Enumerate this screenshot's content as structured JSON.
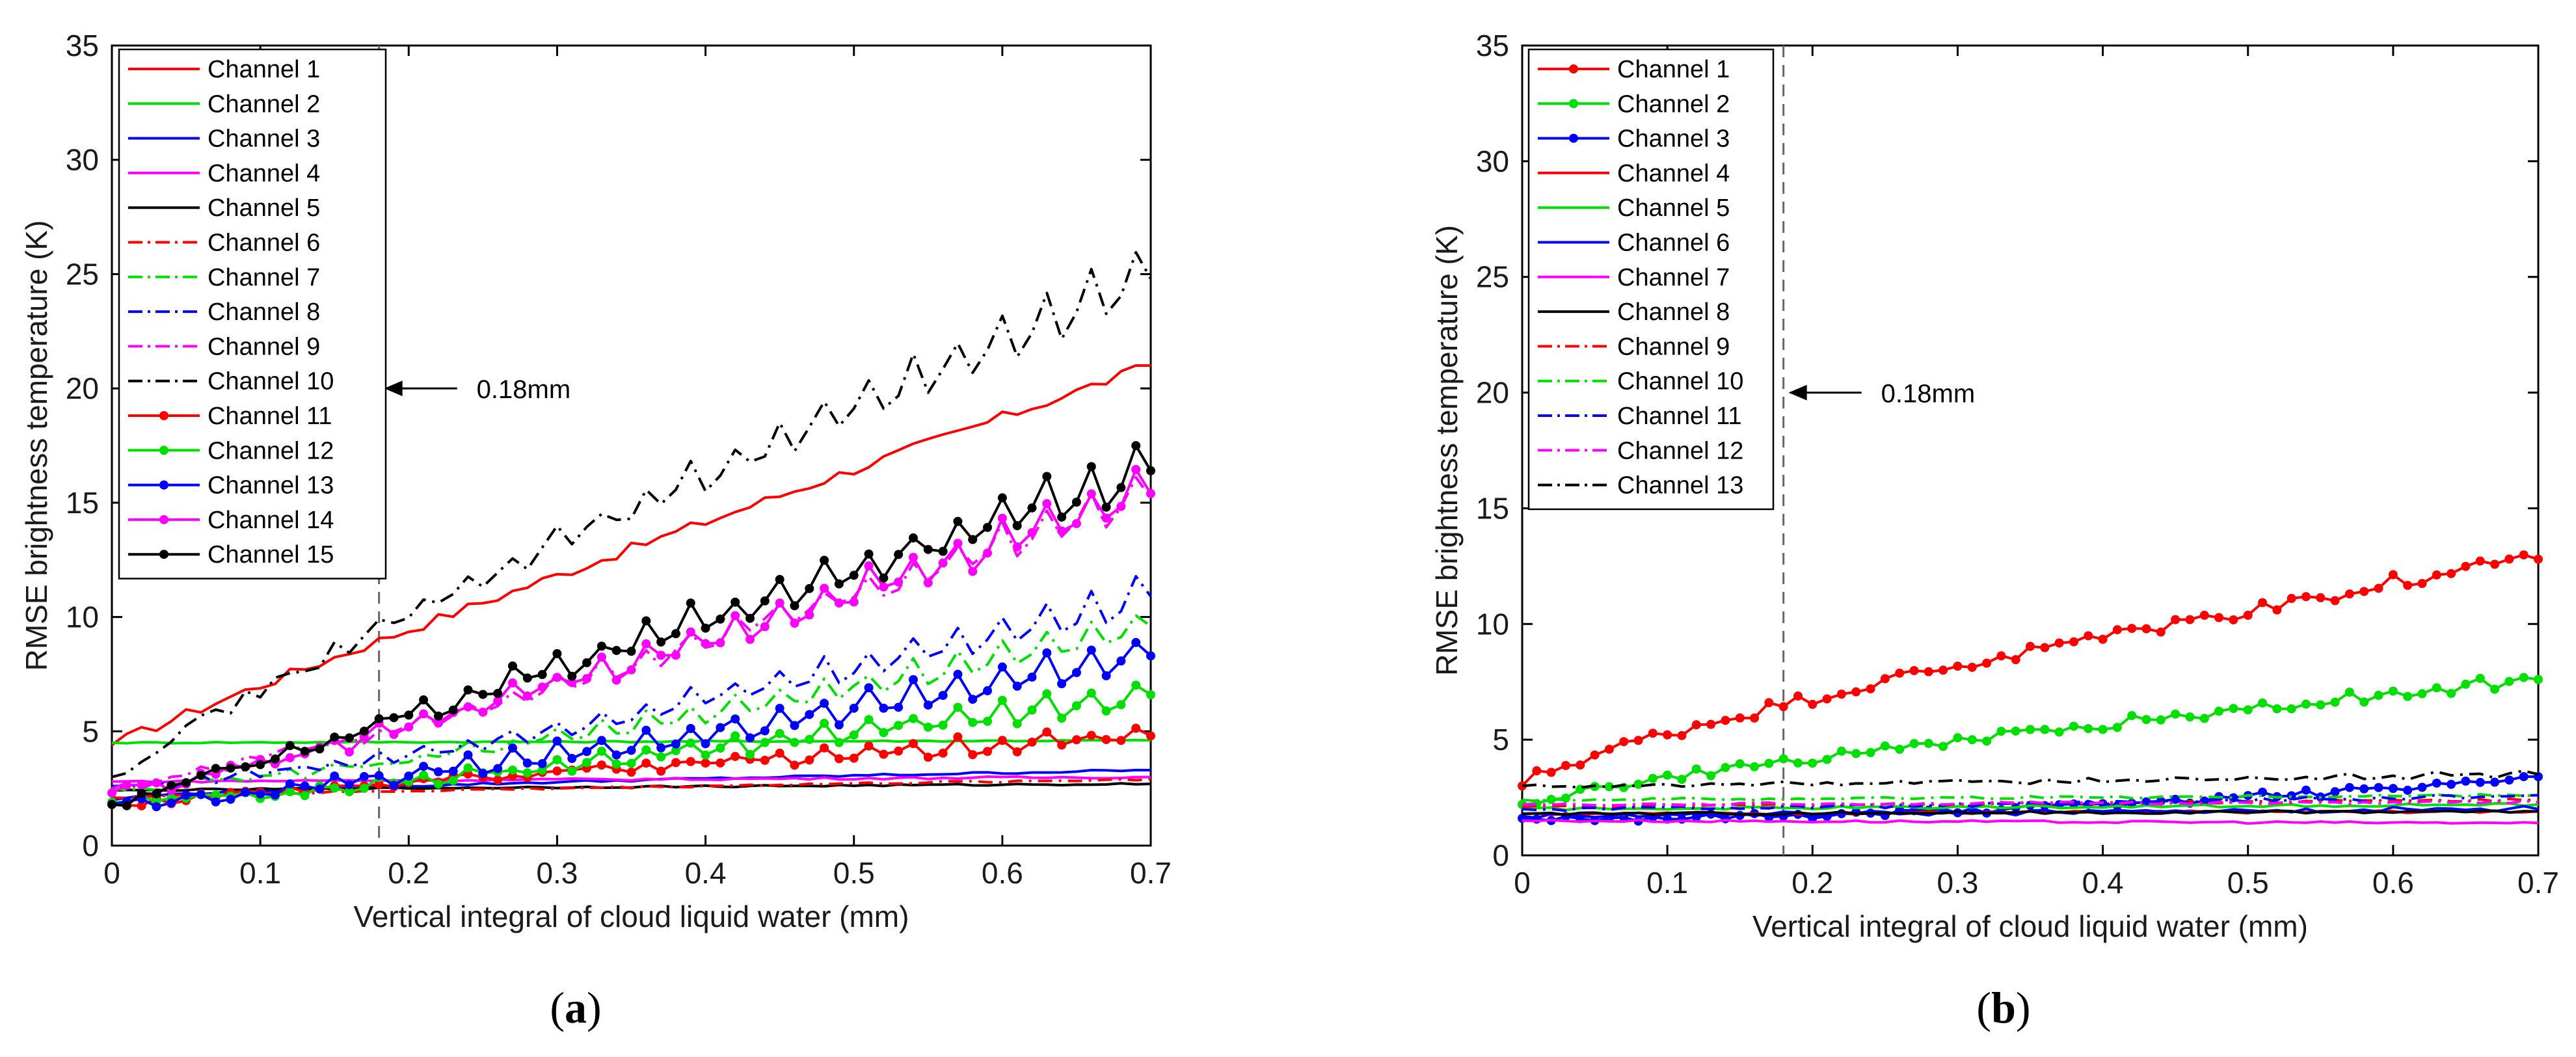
{
  "chart_data": [
    {
      "type": "line",
      "panel_label": "(a)",
      "xlabel": "Vertical integral of cloud liquid water (mm)",
      "ylabel": "RMSE brightness temperature (K)",
      "xlim": [
        0,
        0.7
      ],
      "ylim": [
        0,
        35
      ],
      "xticks": [
        "0",
        "0.1",
        "0.2",
        "0.3",
        "0.4",
        "0.5",
        "0.6",
        "0.7"
      ],
      "yticks": [
        "0",
        "5",
        "10",
        "15",
        "20",
        "25",
        "30",
        "35"
      ],
      "legend_position": "top-left",
      "annotation": {
        "text": "0.18mm",
        "x": 0.18
      },
      "series": [
        {
          "name": "Channel 1",
          "color": "#ff0000",
          "style": "solid",
          "marker": false,
          "start": 4.4,
          "end": 21.0,
          "shape": 0.95,
          "noise": 0.25,
          "osc": 0
        },
        {
          "name": "Channel 2",
          "color": "#00e000",
          "style": "solid",
          "marker": false,
          "start": 4.5,
          "end": 4.6,
          "shape": 1.0,
          "noise": 0.03,
          "osc": 0
        },
        {
          "name": "Channel 3",
          "color": "#0000ff",
          "style": "solid",
          "marker": false,
          "start": 2.0,
          "end": 3.3,
          "shape": 0.6,
          "noise": 0.05,
          "osc": 0
        },
        {
          "name": "Channel 4",
          "color": "#ff00ff",
          "style": "solid",
          "marker": false,
          "start": 2.8,
          "end": 3.0,
          "shape": 1.0,
          "noise": 0.05,
          "osc": 0
        },
        {
          "name": "Channel 5",
          "color": "#000000",
          "style": "solid",
          "marker": false,
          "start": 2.4,
          "end": 2.7,
          "shape": 0.8,
          "noise": 0.04,
          "osc": 0
        },
        {
          "name": "Channel 6",
          "color": "#ff0000",
          "style": "dashdot",
          "marker": false,
          "start": 2.1,
          "end": 2.9,
          "shape": 0.8,
          "noise": 0.05,
          "osc": 0
        },
        {
          "name": "Channel 7",
          "color": "#00e000",
          "style": "dashdot",
          "marker": false,
          "start": 2.5,
          "end": 9.6,
          "shape": 1.4,
          "noise": 0.2,
          "osc": 0.8
        },
        {
          "name": "Channel 8",
          "color": "#0000ff",
          "style": "dashdot",
          "marker": false,
          "start": 2.6,
          "end": 10.9,
          "shape": 1.4,
          "noise": 0.2,
          "osc": 0.9
        },
        {
          "name": "Channel 9",
          "color": "#ff00ff",
          "style": "dashdot",
          "marker": false,
          "start": 2.5,
          "end": 15.2,
          "shape": 1.2,
          "noise": 0.3,
          "osc": 1.0
        },
        {
          "name": "Channel 10",
          "color": "#000000",
          "style": "dashdot",
          "marker": false,
          "start": 3.0,
          "end": 24.8,
          "shape": 0.9,
          "noise": 0.3,
          "osc": 1.4
        },
        {
          "name": "Channel 11",
          "color": "#ff0000",
          "style": "solid",
          "marker": true,
          "start": 1.8,
          "end": 4.8,
          "shape": 0.9,
          "noise": 0.2,
          "osc": 0.4
        },
        {
          "name": "Channel 12",
          "color": "#00e000",
          "style": "solid",
          "marker": true,
          "start": 1.9,
          "end": 6.6,
          "shape": 1.3,
          "noise": 0.2,
          "osc": 0.6
        },
        {
          "name": "Channel 13",
          "color": "#0000ff",
          "style": "solid",
          "marker": true,
          "start": 1.8,
          "end": 8.3,
          "shape": 1.3,
          "noise": 0.25,
          "osc": 0.9
        },
        {
          "name": "Channel 14",
          "color": "#ff00ff",
          "style": "solid",
          "marker": true,
          "start": 2.3,
          "end": 15.4,
          "shape": 1.2,
          "noise": 0.3,
          "osc": 1.0
        },
        {
          "name": "Channel 15",
          "color": "#000000",
          "style": "solid",
          "marker": true,
          "start": 1.8,
          "end": 16.4,
          "shape": 1.05,
          "noise": 0.35,
          "osc": 1.1
        }
      ]
    },
    {
      "type": "line",
      "panel_label": "(b)",
      "xlabel": "Vertical integral of cloud liquid water (mm)",
      "ylabel": "RMSE brightness temperature (K)",
      "xlim": [
        0,
        0.7
      ],
      "ylim": [
        0,
        35
      ],
      "xticks": [
        "0",
        "0.1",
        "0.2",
        "0.3",
        "0.4",
        "0.5",
        "0.6",
        "0.7"
      ],
      "yticks": [
        "0",
        "5",
        "10",
        "15",
        "20",
        "25",
        "30",
        "35"
      ],
      "legend_position": "top-left",
      "annotation": {
        "text": "0.18mm",
        "x": 0.18
      },
      "series": [
        {
          "name": "Channel 1",
          "color": "#ff0000",
          "style": "solid",
          "marker": true,
          "start": 3.0,
          "end": 12.8,
          "shape": 0.75,
          "noise": 0.3,
          "osc": 0.2
        },
        {
          "name": "Channel 2",
          "color": "#00e000",
          "style": "solid",
          "marker": true,
          "start": 2.2,
          "end": 7.6,
          "shape": 0.8,
          "noise": 0.2,
          "osc": 0.15
        },
        {
          "name": "Channel 3",
          "color": "#0000ff",
          "style": "solid",
          "marker": true,
          "start": 1.6,
          "end": 3.4,
          "shape": 2.0,
          "noise": 0.15,
          "osc": 0.1
        },
        {
          "name": "Channel 4",
          "color": "#ff0000",
          "style": "solid",
          "marker": false,
          "start": 1.8,
          "end": 1.9,
          "shape": 1.0,
          "noise": 0.06,
          "osc": 0
        },
        {
          "name": "Channel 5",
          "color": "#00e000",
          "style": "solid",
          "marker": false,
          "start": 2.0,
          "end": 2.2,
          "shape": 1.0,
          "noise": 0.06,
          "osc": 0
        },
        {
          "name": "Channel 6",
          "color": "#0000ff",
          "style": "solid",
          "marker": false,
          "start": 1.7,
          "end": 2.0,
          "shape": 1.0,
          "noise": 0.1,
          "osc": 0.05
        },
        {
          "name": "Channel 7",
          "color": "#ff00ff",
          "style": "solid",
          "marker": false,
          "start": 1.5,
          "end": 1.4,
          "shape": 1.0,
          "noise": 0.05,
          "osc": 0
        },
        {
          "name": "Channel 8",
          "color": "#000000",
          "style": "solid",
          "marker": false,
          "start": 1.8,
          "end": 1.9,
          "shape": 1.0,
          "noise": 0.06,
          "osc": 0
        },
        {
          "name": "Channel 9",
          "color": "#ff0000",
          "style": "dashdot",
          "marker": false,
          "start": 2.1,
          "end": 2.4,
          "shape": 1.0,
          "noise": 0.06,
          "osc": 0
        },
        {
          "name": "Channel 10",
          "color": "#00e000",
          "style": "dashdot",
          "marker": false,
          "start": 2.4,
          "end": 2.6,
          "shape": 1.0,
          "noise": 0.06,
          "osc": 0
        },
        {
          "name": "Channel 11",
          "color": "#0000ff",
          "style": "dashdot",
          "marker": false,
          "start": 2.0,
          "end": 2.6,
          "shape": 1.5,
          "noise": 0.08,
          "osc": 0.05
        },
        {
          "name": "Channel 12",
          "color": "#ff00ff",
          "style": "dashdot",
          "marker": false,
          "start": 2.2,
          "end": 2.3,
          "shape": 1.0,
          "noise": 0.06,
          "osc": 0
        },
        {
          "name": "Channel 13",
          "color": "#000000",
          "style": "dashdot",
          "marker": false,
          "start": 3.0,
          "end": 3.5,
          "shape": 1.3,
          "noise": 0.1,
          "osc": 0.1
        }
      ]
    }
  ]
}
